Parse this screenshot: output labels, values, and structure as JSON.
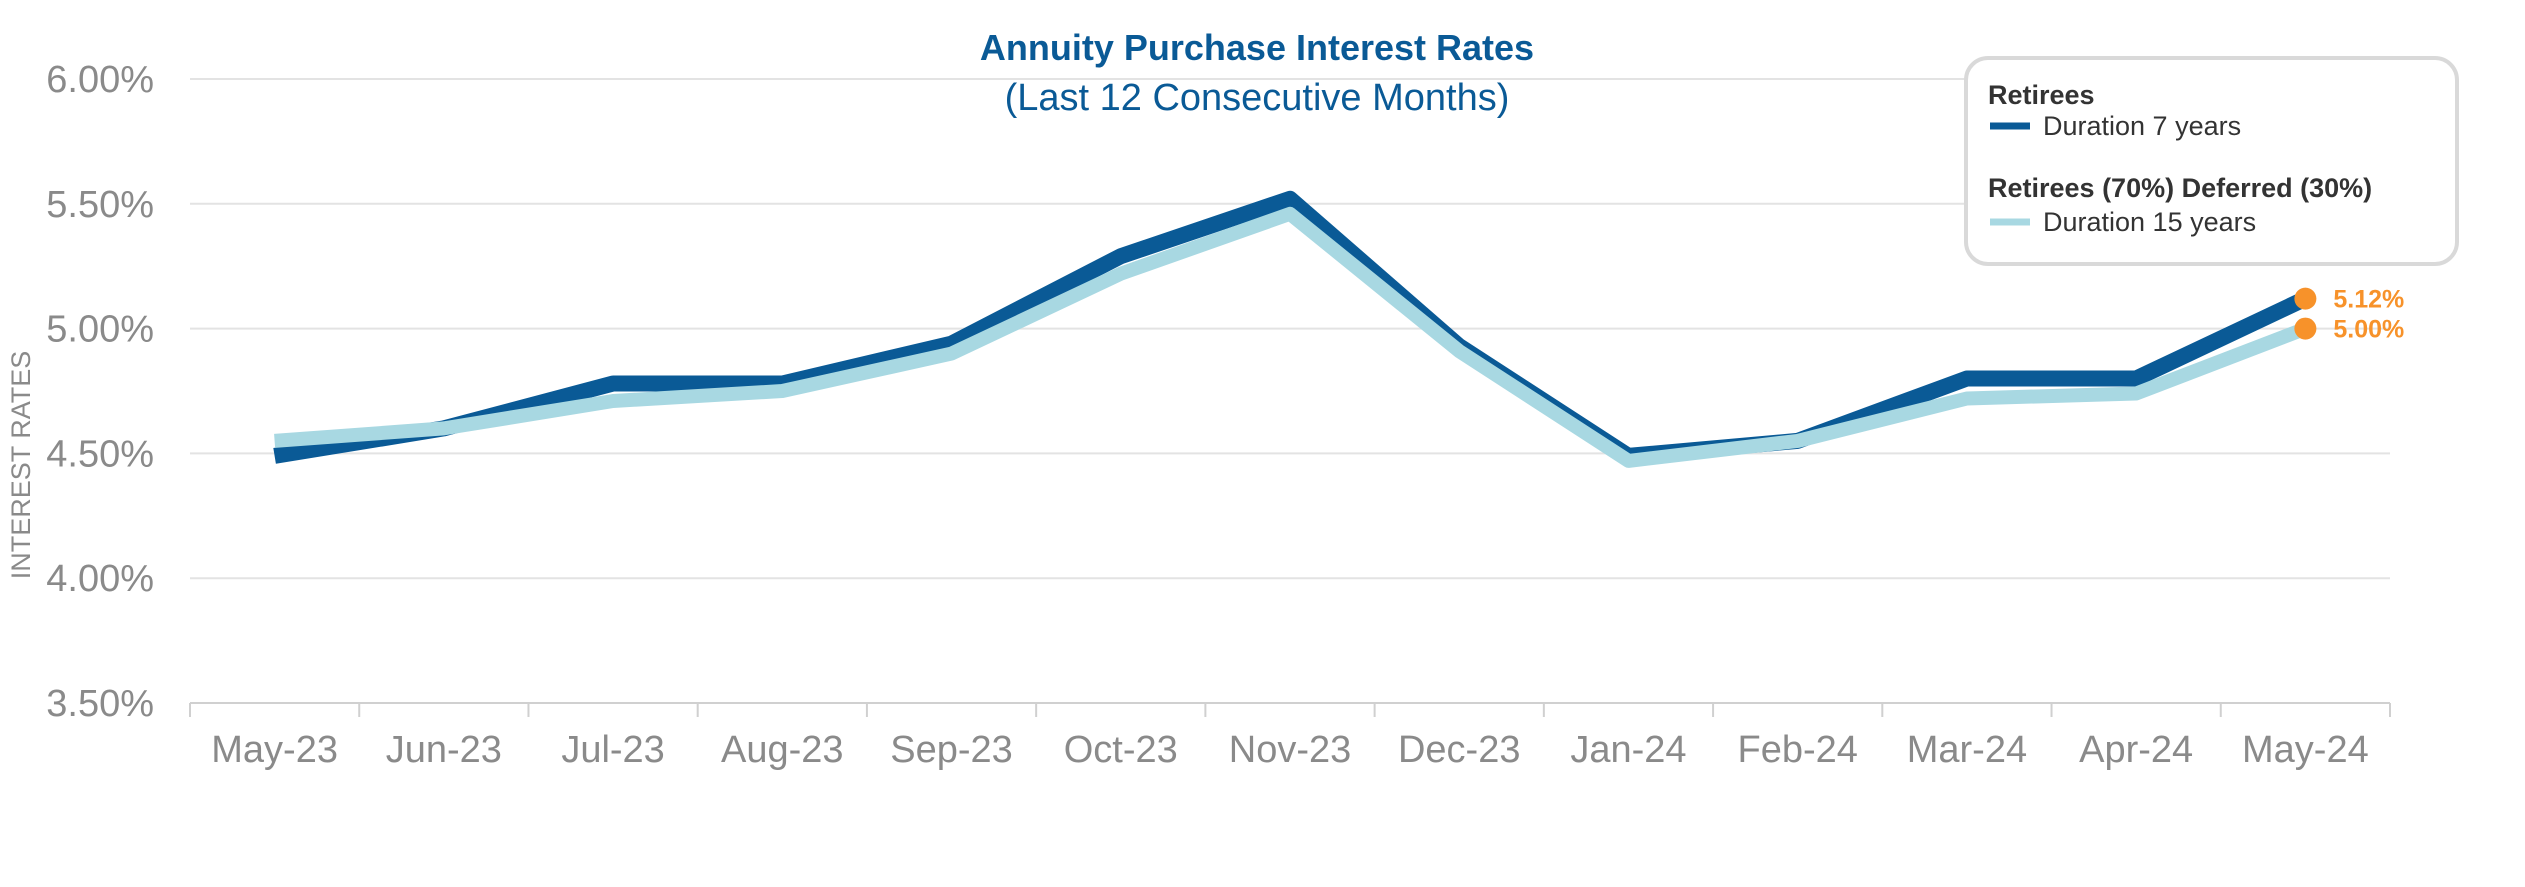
{
  "chart_data": {
    "type": "line",
    "title": "Annuity Purchase Interest Rates",
    "subtitle": "(Last 12 Consecutive Months)",
    "xlabel": "",
    "ylabel": "INTEREST RATES",
    "ylim": [
      3.5,
      6.0
    ],
    "yticks": [
      {
        "value": 6.0,
        "label": "6.00%"
      },
      {
        "value": 5.5,
        "label": "5.50%"
      },
      {
        "value": 5.0,
        "label": "5.00%"
      },
      {
        "value": 4.5,
        "label": "4.50%"
      },
      {
        "value": 4.0,
        "label": "4.00%"
      },
      {
        "value": 3.5,
        "label": "3.50%"
      }
    ],
    "grid": true,
    "legend_position": "top-right",
    "categories": [
      "May-23",
      "Jun-23",
      "Jul-23",
      "Aug-23",
      "Sep-23",
      "Oct-23",
      "Nov-23",
      "Dec-23",
      "Jan-24",
      "Feb-24",
      "Mar-24",
      "Apr-24",
      "May-24"
    ],
    "series": [
      {
        "name": "Retirees",
        "legend_label": "Duration 7 years",
        "color": "#0a5a96",
        "values": [
          4.49,
          4.6,
          4.78,
          4.78,
          4.94,
          5.29,
          5.52,
          4.93,
          4.49,
          4.55,
          4.8,
          4.8,
          5.12
        ]
      },
      {
        "name": "Retirees (70%) Deferred (30%)",
        "legend_label": "Duration 15 years",
        "color": "#a8d8e2",
        "values": [
          4.55,
          4.6,
          4.71,
          4.75,
          4.9,
          5.22,
          5.46,
          4.91,
          4.47,
          4.55,
          4.72,
          4.74,
          5.0
        ]
      }
    ],
    "annotations": [
      {
        "series": "Retirees",
        "label": "5.12%",
        "value": 5.12
      },
      {
        "series": "Retirees (70%) Deferred (30%)",
        "label": "5.00%",
        "value": 5.0
      }
    ],
    "annotation_color": "#f7922a",
    "title_color": "#0a5a96"
  }
}
